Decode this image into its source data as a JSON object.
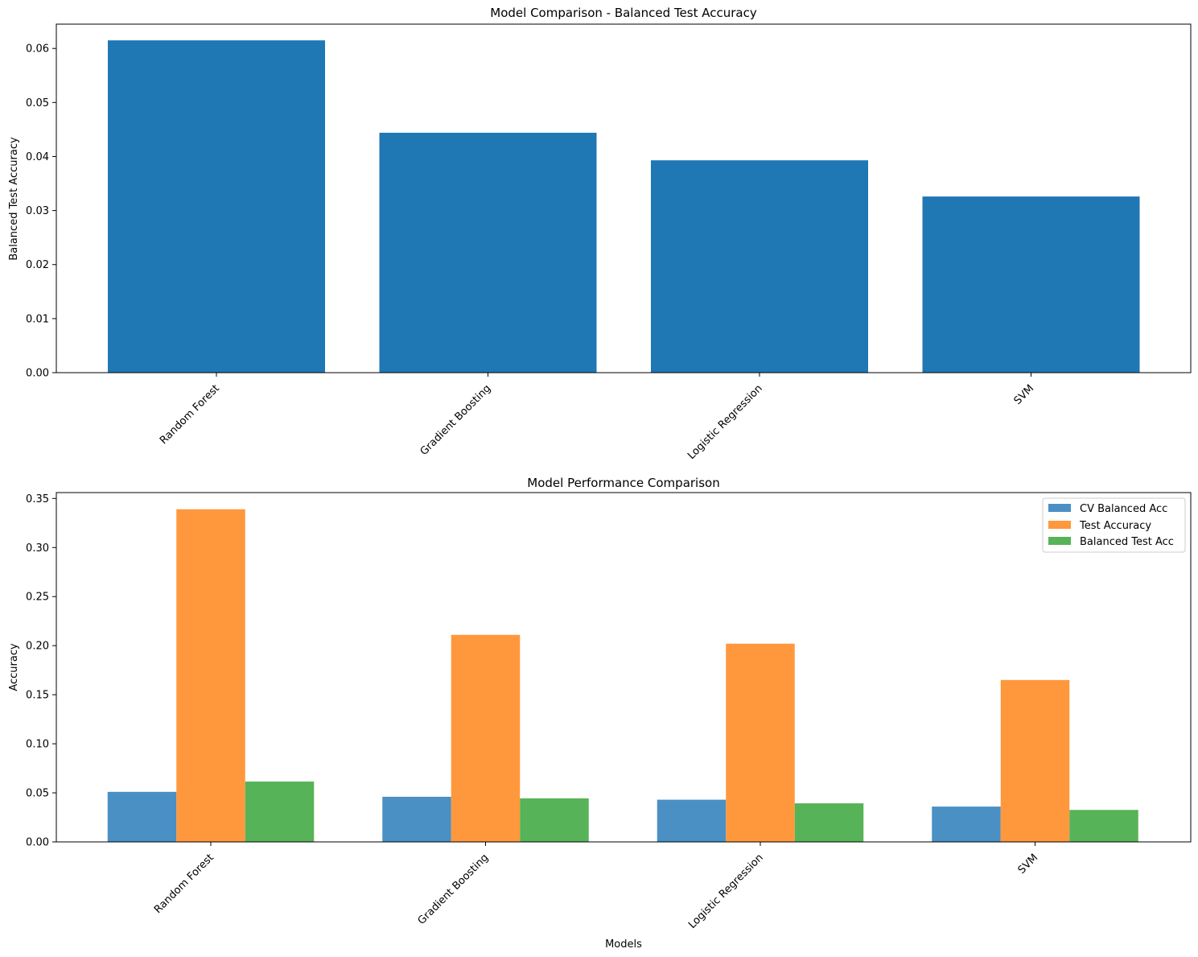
{
  "chart_data": [
    {
      "type": "bar",
      "title": "Model Comparison - Balanced Test Accuracy",
      "xlabel": "",
      "ylabel": "Balanced Test Accuracy",
      "categories": [
        "Random Forest",
        "Gradient Boosting",
        "Logistic Regression",
        "SVM"
      ],
      "values": [
        0.0615,
        0.0444,
        0.0393,
        0.0326
      ],
      "ylim": [
        0,
        0.0645
      ],
      "yticks": [
        "0.00",
        "0.01",
        "0.02",
        "0.03",
        "0.04",
        "0.05",
        "0.06"
      ],
      "ytick_values": [
        0,
        0.01,
        0.02,
        0.03,
        0.04,
        0.05,
        0.06
      ],
      "grid": false,
      "color": "#1f77b4"
    },
    {
      "type": "bar",
      "title": "Model Performance Comparison",
      "xlabel": "Models",
      "ylabel": "Accuracy",
      "categories": [
        "Random Forest",
        "Gradient Boosting",
        "Logistic Regression",
        "SVM"
      ],
      "series": [
        {
          "name": "CV Balanced Acc",
          "values": [
            0.051,
            0.046,
            0.043,
            0.036
          ],
          "color": "#4a90c4"
        },
        {
          "name": "Test Accuracy",
          "values": [
            0.339,
            0.211,
            0.202,
            0.165
          ],
          "color": "#ff983d"
        },
        {
          "name": "Balanced Test Acc",
          "values": [
            0.0615,
            0.0444,
            0.0393,
            0.0326
          ],
          "color": "#57b357"
        }
      ],
      "ylim": [
        0,
        0.356
      ],
      "yticks": [
        "0.00",
        "0.05",
        "0.10",
        "0.15",
        "0.20",
        "0.25",
        "0.30",
        "0.35"
      ],
      "ytick_values": [
        0,
        0.05,
        0.1,
        0.15,
        0.2,
        0.25,
        0.3,
        0.35
      ],
      "grid": false,
      "legend_position": "top-right"
    }
  ]
}
